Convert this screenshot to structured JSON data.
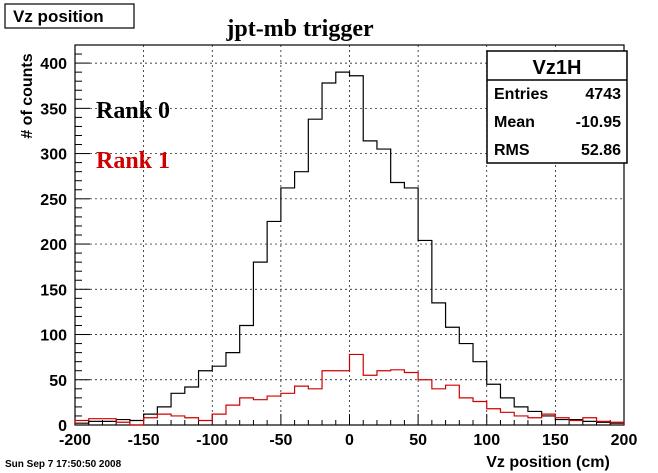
{
  "canvas_title": "Vz position",
  "timestamp": "Sun Sep  7 17:50:50 2008",
  "stats": {
    "name": "Vz1H",
    "rows": [
      {
        "label": "Entries",
        "value": "4743"
      },
      {
        "label": "Mean",
        "value": "-10.95"
      },
      {
        "label": "RMS",
        "value": "52.86"
      }
    ]
  },
  "annotations": {
    "rank0": {
      "text": "Rank 0",
      "color": "#000000"
    },
    "rank1": {
      "text": "Rank 1",
      "color": "#d00000"
    }
  },
  "chart_data": {
    "type": "line",
    "title": "jpt-mb trigger",
    "xlabel": "Vz position (cm)",
    "ylabel": "# of counts",
    "xlim": [
      -200,
      200
    ],
    "ylim": [
      0,
      420
    ],
    "grid": true,
    "xticks": [
      -200,
      -150,
      -100,
      -50,
      0,
      50,
      100,
      150,
      200
    ],
    "yticks": [
      0,
      50,
      100,
      150,
      200,
      250,
      300,
      350,
      400
    ],
    "bin_edges": [
      -200,
      -190,
      -180,
      -170,
      -160,
      -150,
      -140,
      -130,
      -120,
      -110,
      -100,
      -90,
      -80,
      -70,
      -60,
      -50,
      -40,
      -30,
      -20,
      -10,
      0,
      10,
      20,
      30,
      40,
      50,
      60,
      70,
      80,
      90,
      100,
      110,
      120,
      130,
      140,
      150,
      160,
      170,
      180,
      190,
      200
    ],
    "series": [
      {
        "color": "#000000",
        "values": [
          2,
          4,
          4,
          6,
          5,
          12,
          20,
          35,
          42,
          60,
          65,
          80,
          110,
          180,
          225,
          262,
          280,
          338,
          378,
          390,
          386,
          314,
          305,
          268,
          262,
          204,
          135,
          108,
          90,
          70,
          45,
          30,
          20,
          15,
          10,
          6,
          6,
          4,
          3,
          2
        ]
      },
      {
        "color": "#d00000",
        "values": [
          5,
          7,
          7,
          3,
          0,
          8,
          12,
          10,
          8,
          5,
          12,
          22,
          30,
          28,
          32,
          35,
          43,
          40,
          60,
          60,
          78,
          55,
          60,
          61,
          58,
          50,
          40,
          44,
          30,
          26,
          18,
          14,
          10,
          8,
          12,
          8,
          5,
          8,
          4,
          3
        ]
      }
    ]
  }
}
